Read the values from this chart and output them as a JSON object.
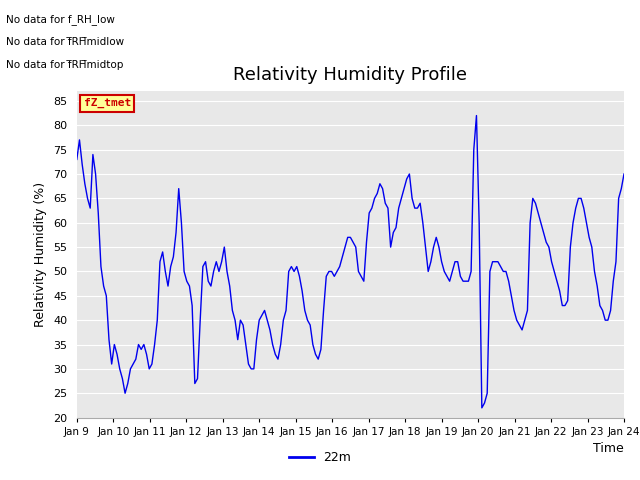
{
  "title": "Relativity Humidity Profile",
  "xlabel": "Time",
  "ylabel": "Relativity Humidity (%)",
  "ylim": [
    20,
    87
  ],
  "bg_color": "#e8e8e8",
  "line_color": "#0000ee",
  "line_label": "22m",
  "no_data_texts": [
    "No data for f_RH_low",
    "No data for f̅RH̅midlow",
    "No data for f̅RH̅midtop"
  ],
  "fz_label": "fZ_tmet",
  "x_tick_labels": [
    "Jan 9",
    "Jan 10",
    "Jan 11",
    "Jan 12",
    "Jan 13",
    "Jan 14",
    "Jan 15",
    "Jan 16",
    "Jan 17",
    "Jan 18",
    "Jan 19",
    "Jan 20",
    "Jan 21",
    "Jan 22",
    "Jan 23",
    "Jan 24"
  ],
  "yticks": [
    20,
    25,
    30,
    35,
    40,
    45,
    50,
    55,
    60,
    65,
    70,
    75,
    80,
    85
  ],
  "data_y": [
    73,
    77,
    72,
    68,
    65,
    63,
    74,
    70,
    62,
    51,
    47,
    45,
    36,
    31,
    35,
    33,
    30,
    28,
    25,
    27,
    30,
    31,
    32,
    35,
    34,
    35,
    33,
    30,
    31,
    35,
    40,
    52,
    54,
    50,
    47,
    51,
    53,
    58,
    67,
    60,
    50,
    48,
    47,
    43,
    27,
    28,
    40,
    51,
    52,
    48,
    47,
    50,
    52,
    50,
    52,
    55,
    50,
    47,
    42,
    40,
    36,
    40,
    39,
    35,
    31,
    30,
    30,
    36,
    40,
    41,
    42,
    40,
    38,
    35,
    33,
    32,
    35,
    40,
    42,
    50,
    51,
    50,
    51,
    49,
    46,
    42,
    40,
    39,
    35,
    33,
    32,
    34,
    42,
    49,
    50,
    50,
    49,
    50,
    51,
    53,
    55,
    57,
    57,
    56,
    55,
    50,
    49,
    48,
    56,
    62,
    63,
    65,
    66,
    68,
    67,
    64,
    63,
    55,
    58,
    59,
    63,
    65,
    67,
    69,
    70,
    65,
    63,
    63,
    64,
    60,
    55,
    50,
    52,
    55,
    57,
    55,
    52,
    50,
    49,
    48,
    50,
    52,
    52,
    49,
    48,
    48,
    48,
    50,
    75,
    82,
    60,
    22,
    23,
    25,
    50,
    52,
    52,
    52,
    51,
    50,
    50,
    48,
    45,
    42,
    40,
    39,
    38,
    40,
    42,
    60,
    65,
    64,
    62,
    60,
    58,
    56,
    55,
    52,
    50,
    48,
    46,
    43,
    43,
    44,
    55,
    60,
    63,
    65,
    65,
    63,
    60,
    57,
    55,
    50,
    47,
    43,
    42,
    40,
    40,
    42,
    48,
    52,
    65,
    67,
    70
  ]
}
